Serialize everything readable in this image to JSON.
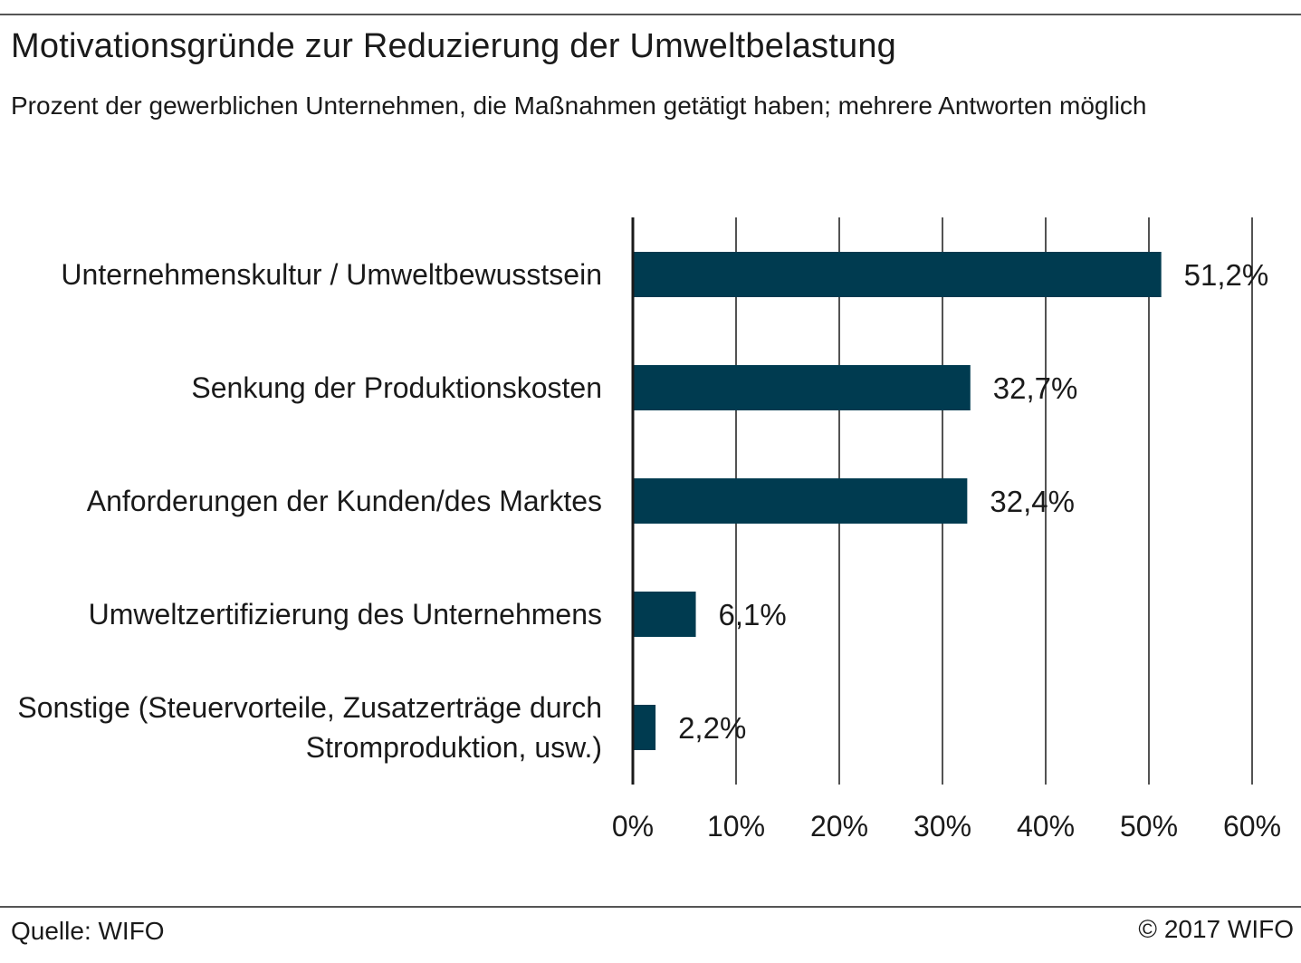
{
  "header": {
    "title": "Motivationsgründe zur Reduzierung der Umweltbelastung",
    "subtitle": "Prozent der gewerblichen Unternehmen, die Maßnahmen getätigt haben; mehrere Antworten möglich"
  },
  "footer": {
    "source": "Quelle: WIFO",
    "copyright": "© 2017 WIFO"
  },
  "chart_data": {
    "type": "bar",
    "orientation": "horizontal",
    "title": "Motivationsgründe zur Reduzierung der Umweltbelastung",
    "subtitle": "Prozent der gewerblichen Unternehmen, die Maßnahmen getätigt haben; mehrere Antworten möglich",
    "categories": [
      [
        "Unternehmenskultur / Umweltbewusstsein"
      ],
      [
        "Senkung der Produktionskosten"
      ],
      [
        "Anforderungen der Kunden/des Marktes"
      ],
      [
        "Umweltzertifizierung des Unternehmens"
      ],
      [
        "Sonstige (Steuervorteile, Zusatzerträge durch",
        "Stromproduktion, usw.)"
      ]
    ],
    "values": [
      51.2,
      32.7,
      32.4,
      6.1,
      2.2
    ],
    "value_labels": [
      "51,2%",
      "32,7%",
      "32,4%",
      "6,1%",
      "2,2%"
    ],
    "xlim": [
      0,
      60
    ],
    "xticks": [
      0,
      10,
      20,
      30,
      40,
      50,
      60
    ],
    "xtick_labels": [
      "0%",
      "10%",
      "20%",
      "30%",
      "40%",
      "50%",
      "60%"
    ],
    "xlabel": "",
    "ylabel": "",
    "grid": true,
    "bar_color": "#003b50",
    "grid_color": "#1a1a1a"
  }
}
